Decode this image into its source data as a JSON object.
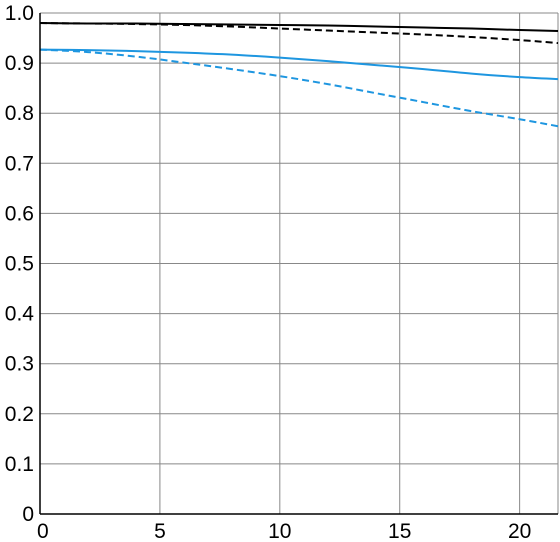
{
  "chart_data": {
    "type": "line",
    "title": "",
    "xlabel": "",
    "ylabel": "",
    "xlim": [
      0,
      21.6
    ],
    "ylim": [
      0,
      1.0
    ],
    "grid": true,
    "legend": "none",
    "x_ticks": [
      0,
      5,
      10,
      15,
      20
    ],
    "x_tick_labels": [
      "0",
      "5",
      "10",
      "15",
      "20"
    ],
    "y_ticks": [
      0,
      0.1,
      0.2,
      0.3,
      0.4,
      0.5,
      0.6,
      0.7,
      0.8,
      0.9,
      1.0
    ],
    "y_tick_labels": [
      "0",
      "0.1",
      "0.2",
      "0.3",
      "0.4",
      "0.5",
      "0.6",
      "0.7",
      "0.8",
      "0.9",
      "1.0"
    ],
    "series": [
      {
        "color": "#000000",
        "style": "solid",
        "x": [
          0,
          2,
          4,
          6,
          8,
          10,
          12,
          14,
          16,
          18,
          20,
          21.6
        ],
        "y": [
          0.98,
          0.979,
          0.979,
          0.978,
          0.977,
          0.976,
          0.975,
          0.973,
          0.971,
          0.969,
          0.966,
          0.964
        ]
      },
      {
        "color": "#000000",
        "style": "dashed",
        "x": [
          0,
          2,
          4,
          6,
          8,
          10,
          12,
          14,
          16,
          18,
          20,
          21.6
        ],
        "y": [
          0.98,
          0.979,
          0.978,
          0.976,
          0.973,
          0.969,
          0.965,
          0.961,
          0.957,
          0.952,
          0.946,
          0.94
        ]
      },
      {
        "color": "#1e96e0",
        "style": "solid",
        "x": [
          0,
          2,
          4,
          6,
          8,
          10,
          12,
          14,
          16,
          18,
          20,
          21.6
        ],
        "y": [
          0.927,
          0.926,
          0.924,
          0.921,
          0.917,
          0.911,
          0.904,
          0.896,
          0.888,
          0.879,
          0.872,
          0.868
        ]
      },
      {
        "color": "#1e96e0",
        "style": "dashed",
        "x": [
          0,
          2,
          4,
          6,
          8,
          10,
          12,
          14,
          16,
          18,
          20,
          21.6
        ],
        "y": [
          0.927,
          0.922,
          0.913,
          0.901,
          0.888,
          0.874,
          0.858,
          0.84,
          0.822,
          0.804,
          0.788,
          0.774
        ]
      }
    ]
  }
}
